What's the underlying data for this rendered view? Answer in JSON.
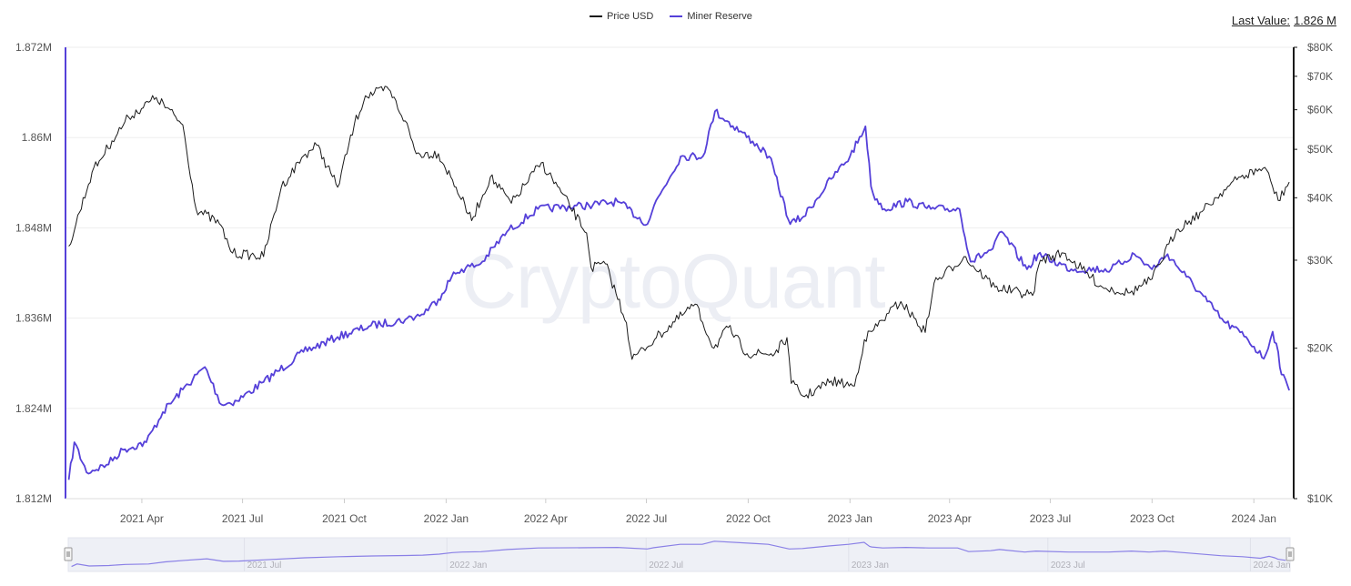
{
  "legend": {
    "price_label": "Price USD",
    "reserve_label": "Miner Reserve"
  },
  "last_value": {
    "label": "Last Value:",
    "value": "1.826 M"
  },
  "watermark": "CryptoQuant",
  "colors": {
    "price": "#1a1a1a",
    "reserve": "#5540d9",
    "grid": "#eeeeee",
    "navigator_bg": "#eef0f6"
  },
  "chart_data": {
    "type": "line",
    "x_ticks": [
      "2021 Apr",
      "2021 Jul",
      "2021 Oct",
      "2022 Jan",
      "2022 Apr",
      "2022 Jul",
      "2022 Oct",
      "2023 Jan",
      "2023 Apr",
      "2023 Jul",
      "2023 Oct",
      "2024 Jan"
    ],
    "left_axis": {
      "ticks": [
        "1.812M",
        "1.824M",
        "1.836M",
        "1.848M",
        "1.86M",
        "1.872M"
      ],
      "ylim": [
        1.812,
        1.872
      ],
      "unit": "M"
    },
    "right_axis": {
      "ticks": [
        "$10K",
        "$20K",
        "$30K",
        "$40K",
        "$50K",
        "$60K",
        "$70K",
        "$80K"
      ],
      "scale": "log",
      "ylim": [
        10000,
        80000
      ]
    },
    "navigator_ticks": [
      "2021 Jul",
      "2022 Jan",
      "2022 Jul",
      "2023 Jan",
      "2023 Jul",
      "2024 Jan"
    ],
    "series": [
      {
        "name": "Price USD",
        "axis": "right",
        "x": [
          "2021-01-25",
          "2021-02-15",
          "2021-03-05",
          "2021-03-20",
          "2021-04-14",
          "2021-05-08",
          "2021-05-20",
          "2021-06-10",
          "2021-06-22",
          "2021-07-20",
          "2021-08-05",
          "2021-08-25",
          "2021-09-06",
          "2021-09-25",
          "2021-10-10",
          "2021-10-20",
          "2021-11-10",
          "2021-11-25",
          "2021-12-05",
          "2021-12-25",
          "2022-01-10",
          "2022-01-24",
          "2022-02-10",
          "2022-03-01",
          "2022-03-28",
          "2022-04-15",
          "2022-05-08",
          "2022-05-12",
          "2022-05-25",
          "2022-06-13",
          "2022-06-18",
          "2022-07-10",
          "2022-08-14",
          "2022-08-31",
          "2022-09-13",
          "2022-09-30",
          "2022-10-25",
          "2022-11-05",
          "2022-11-09",
          "2022-11-21",
          "2022-12-15",
          "2023-01-05",
          "2023-01-14",
          "2023-02-05",
          "2023-02-16",
          "2023-03-10",
          "2023-03-18",
          "2023-04-14",
          "2023-05-12",
          "2023-06-15",
          "2023-06-22",
          "2023-07-13",
          "2023-08-17",
          "2023-09-11",
          "2023-10-01",
          "2023-10-23",
          "2023-11-15",
          "2023-12-05",
          "2023-12-20",
          "2024-01-11",
          "2024-01-23",
          "2024-02-02"
        ],
        "values": [
          32000,
          45000,
          52000,
          58000,
          63500,
          56000,
          38000,
          35500,
          31000,
          30500,
          42000,
          48500,
          51000,
          42000,
          56000,
          64000,
          66000,
          57000,
          49000,
          49000,
          42000,
          36000,
          44000,
          39000,
          47000,
          41000,
          34000,
          29000,
          29500,
          22500,
          19000,
          21000,
          24500,
          20000,
          22000,
          19500,
          19500,
          21000,
          17000,
          16000,
          17200,
          16800,
          20800,
          23500,
          24800,
          21500,
          27000,
          30500,
          26500,
          25500,
          30000,
          31000,
          26500,
          25800,
          27500,
          34500,
          37500,
          41500,
          44000,
          46000,
          39500,
          43000
        ]
      },
      {
        "name": "Miner Reserve",
        "axis": "left",
        "x": [
          "2021-01-25",
          "2021-01-30",
          "2021-02-10",
          "2021-02-28",
          "2021-03-15",
          "2021-04-05",
          "2021-04-20",
          "2021-05-08",
          "2021-05-28",
          "2021-06-12",
          "2021-06-26",
          "2021-07-20",
          "2021-08-25",
          "2021-09-25",
          "2021-10-25",
          "2021-11-25",
          "2021-12-10",
          "2021-12-25",
          "2022-01-06",
          "2022-01-15",
          "2022-02-01",
          "2022-02-25",
          "2022-03-25",
          "2022-05-10",
          "2022-06-05",
          "2022-07-02",
          "2022-07-08",
          "2022-08-01",
          "2022-08-21",
          "2022-09-01",
          "2022-10-05",
          "2022-10-20",
          "2022-11-08",
          "2022-11-20",
          "2022-12-15",
          "2023-01-01",
          "2023-01-15",
          "2023-01-20",
          "2023-01-22",
          "2023-02-01",
          "2023-02-22",
          "2023-03-15",
          "2023-04-10",
          "2023-04-20",
          "2023-05-10",
          "2023-05-18",
          "2023-06-10",
          "2023-06-20",
          "2023-07-20",
          "2023-08-25",
          "2023-09-15",
          "2023-10-01",
          "2023-10-15",
          "2023-11-01",
          "2023-11-20",
          "2023-12-05",
          "2023-12-25",
          "2024-01-10",
          "2024-01-18",
          "2024-01-23",
          "2024-01-26",
          "2024-02-02"
        ],
        "values": [
          1.8145,
          1.8195,
          1.8155,
          1.8165,
          1.8185,
          1.8195,
          1.8235,
          1.8265,
          1.8295,
          1.8245,
          1.825,
          1.8275,
          1.8315,
          1.8335,
          1.835,
          1.8358,
          1.8365,
          1.8385,
          1.8415,
          1.8425,
          1.8432,
          1.8475,
          1.8505,
          1.851,
          1.8515,
          1.8485,
          1.851,
          1.8575,
          1.8575,
          1.8635,
          1.8595,
          1.8575,
          1.8485,
          1.8495,
          1.8545,
          1.8575,
          1.8615,
          1.8535,
          1.8525,
          1.8505,
          1.8515,
          1.8505,
          1.8505,
          1.8435,
          1.8452,
          1.8475,
          1.8425,
          1.8445,
          1.8425,
          1.8425,
          1.8445,
          1.8425,
          1.8445,
          1.8415,
          1.8382,
          1.8355,
          1.8335,
          1.8306,
          1.8342,
          1.8315,
          1.8285,
          1.8264
        ]
      }
    ]
  }
}
